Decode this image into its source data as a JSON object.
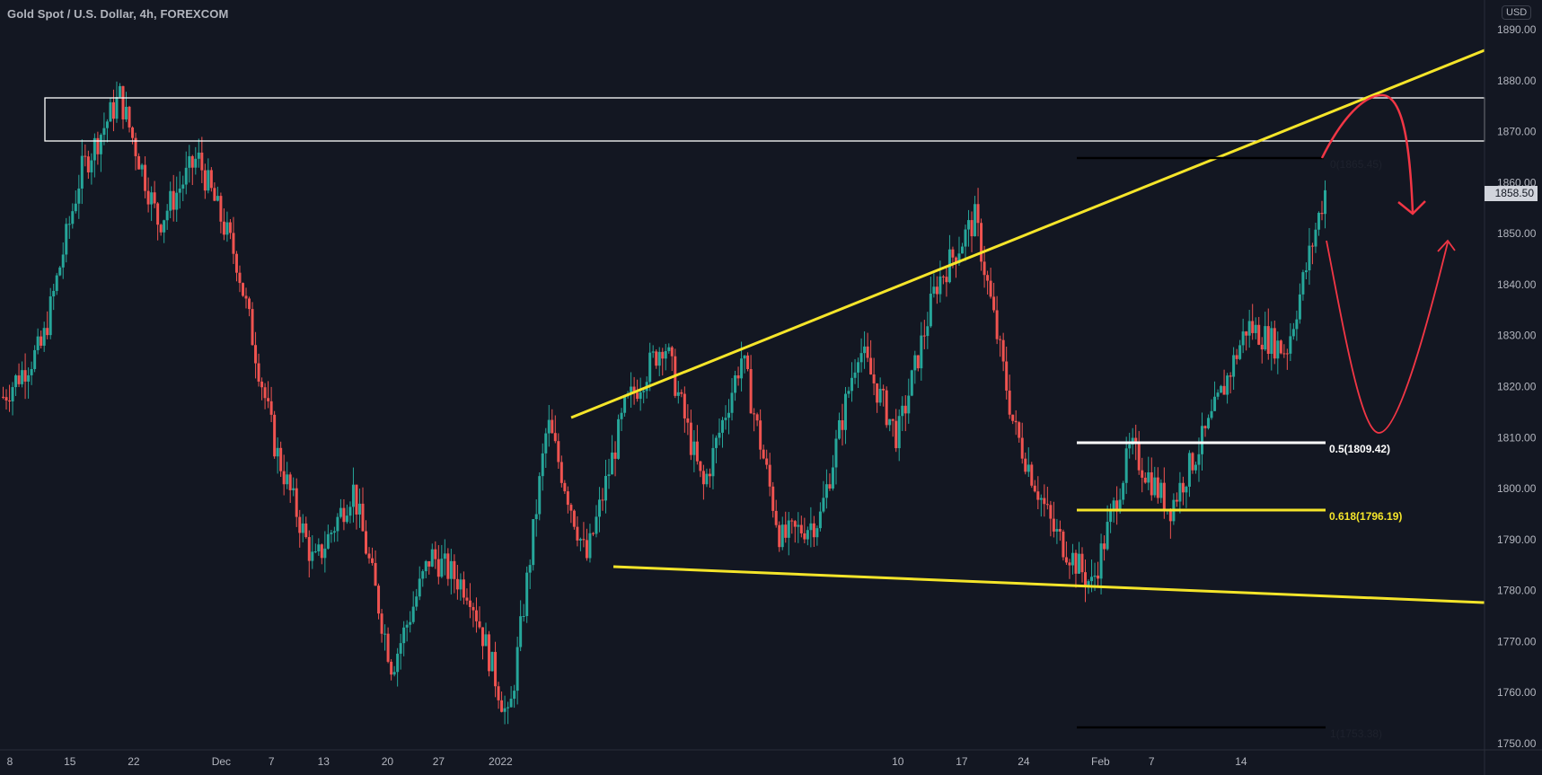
{
  "header": {
    "title": "Gold Spot / U.S. Dollar, 4h, FOREXCOM",
    "currency_badge": "USD"
  },
  "price_axis": {
    "labels": [
      "1890.00",
      "1880.00",
      "1870.00",
      "1860.00",
      "1850.00",
      "1840.00",
      "1830.00",
      "1820.00",
      "1810.00",
      "1800.00",
      "1790.00",
      "1780.00",
      "1770.00",
      "1760.00",
      "1750.00"
    ],
    "last_price": "1858.50"
  },
  "time_axis": {
    "labels": [
      {
        "t": "8",
        "x": 10
      },
      {
        "t": "15",
        "x": 71
      },
      {
        "t": "22",
        "x": 136
      },
      {
        "t": "Dec",
        "x": 225
      },
      {
        "t": "7",
        "x": 276
      },
      {
        "t": "13",
        "x": 329
      },
      {
        "t": "20",
        "x": 394
      },
      {
        "t": "27",
        "x": 446
      },
      {
        "t": "2022",
        "x": 509
      },
      {
        "t": "10",
        "x": 913
      },
      {
        "t": "17",
        "x": 978
      },
      {
        "t": "24",
        "x": 1041
      },
      {
        "t": "Feb",
        "x": 1119
      },
      {
        "t": "7",
        "x": 1171
      },
      {
        "t": "14",
        "x": 1262
      }
    ]
  },
  "drawings": {
    "fib_labels": {
      "level_0": "0(1865.45)",
      "level_05": "0.5(1809.42)",
      "level_0618": "0.618(1796.19)",
      "level_1": "1(1753.38)"
    }
  },
  "colors": {
    "background": "#131722",
    "up": "#26a69a",
    "down": "#ef5350",
    "trendline": "#f5e52a",
    "arrow": "#f23645",
    "zone": "#ffffff",
    "fib_0": "#000000",
    "fib_05": "#ffffff",
    "fib_0618": "#f5e52a"
  },
  "chart_data": {
    "type": "candlestick",
    "title": "Gold Spot / U.S. Dollar, 4h, FOREXCOM",
    "xlabel": "",
    "ylabel": "USD",
    "ylim": [
      1750,
      1890
    ],
    "x_ticks": [
      "8",
      "15",
      "22",
      "Dec",
      "7",
      "13",
      "20",
      "27",
      "2022",
      "10",
      "17",
      "24",
      "Feb",
      "7",
      "14"
    ],
    "y_ticks": [
      1750,
      1760,
      1770,
      1780,
      1790,
      1800,
      1810,
      1820,
      1830,
      1840,
      1850,
      1860,
      1870,
      1880,
      1890
    ],
    "last_price": 1858.5,
    "approx_path": [
      {
        "date": "Nov 8",
        "price": 1818
      },
      {
        "date": "Nov 10",
        "price": 1828
      },
      {
        "date": "Nov 12",
        "price": 1862
      },
      {
        "date": "Nov 16",
        "price": 1877
      },
      {
        "date": "Nov 17",
        "price": 1852
      },
      {
        "date": "Nov 19",
        "price": 1865
      },
      {
        "date": "Nov 22",
        "price": 1845
      },
      {
        "date": "Nov 23",
        "price": 1808
      },
      {
        "date": "Nov 25",
        "price": 1785
      },
      {
        "date": "Nov 29",
        "price": 1800
      },
      {
        "date": "Dec 3",
        "price": 1765
      },
      {
        "date": "Dec 7",
        "price": 1787
      },
      {
        "date": "Dec 13",
        "price": 1780
      },
      {
        "date": "Dec 15",
        "price": 1754
      },
      {
        "date": "Dec 20",
        "price": 1813
      },
      {
        "date": "Dec 23",
        "price": 1786
      },
      {
        "date": "Dec 28",
        "price": 1816
      },
      {
        "date": "Dec 31",
        "price": 1829
      },
      {
        "date": "Jan 3",
        "price": 1800
      },
      {
        "date": "Jan 6",
        "price": 1826
      },
      {
        "date": "Jan 7",
        "price": 1790
      },
      {
        "date": "Jan 10",
        "price": 1794
      },
      {
        "date": "Jan 13",
        "price": 1828
      },
      {
        "date": "Jan 17",
        "price": 1810
      },
      {
        "date": "Jan 20",
        "price": 1840
      },
      {
        "date": "Jan 25",
        "price": 1853
      },
      {
        "date": "Jan 27",
        "price": 1812
      },
      {
        "date": "Jan 28",
        "price": 1792
      },
      {
        "date": "Jan 31",
        "price": 1781
      },
      {
        "date": "Feb 2",
        "price": 1808
      },
      {
        "date": "Feb 4",
        "price": 1796
      },
      {
        "date": "Feb 7",
        "price": 1812
      },
      {
        "date": "Feb 9",
        "price": 1832
      },
      {
        "date": "Feb 10",
        "price": 1827
      },
      {
        "date": "Feb 11",
        "price": 1858.5
      }
    ],
    "annotations": [
      {
        "type": "rectangle_zone",
        "from": 1869,
        "to": 1877,
        "label": "resistance zone"
      },
      {
        "type": "trendline",
        "label": "upper wedge line",
        "from": {
          "date": "Dec 20",
          "price": 1814
        },
        "to": {
          "date": "Feb 17",
          "price": 1886
        }
      },
      {
        "type": "trendline",
        "label": "lower wedge line",
        "from": {
          "date": "Dec 23",
          "price": 1785
        },
        "to": {
          "date": "Feb 17",
          "price": 1778
        }
      },
      {
        "type": "fib",
        "level": "0",
        "price": 1865.45
      },
      {
        "type": "fib",
        "level": "0.5",
        "price": 1809.42
      },
      {
        "type": "fib",
        "level": "0.618",
        "price": 1796.19
      },
      {
        "type": "fib",
        "level": "1",
        "price": 1753.38
      },
      {
        "type": "arrow_projection",
        "desc": "up to ~1878 then down to ~1855"
      },
      {
        "type": "arrow_projection",
        "desc": "down to ~1810 then up to ~1850"
      }
    ]
  }
}
